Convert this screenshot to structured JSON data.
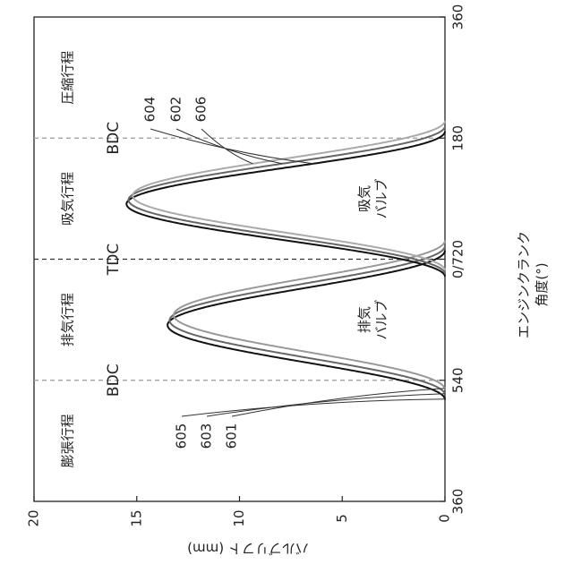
{
  "chart_data": {
    "type": "line",
    "title": "",
    "xlabel": "エンジンクランク\n角度(°)",
    "ylabel": "バルブリフト (mm)",
    "ylim": [
      0,
      20
    ],
    "x_ticks": [
      "360",
      "540",
      "0/720",
      "180",
      "360"
    ],
    "x_tick_values": [
      360,
      540,
      720,
      900,
      1080
    ],
    "y_ticks": [
      "0",
      "5",
      "10",
      "15",
      "20"
    ],
    "y_tick_values": [
      0,
      5,
      10,
      15,
      20
    ],
    "grid": false,
    "reference_lines": [
      {
        "x": 540,
        "label": "BDC"
      },
      {
        "x": 720,
        "label": "TDC"
      },
      {
        "x": 900,
        "label": "BDC"
      }
    ],
    "stroke_labels": [
      {
        "label": "膨張行程",
        "x_center": 450
      },
      {
        "label": "排気行程",
        "x_center": 630
      },
      {
        "label": "吸気行程",
        "x_center": 810
      },
      {
        "label": "圧縮行程",
        "x_center": 990
      }
    ],
    "valve_labels": [
      {
        "label": "排気\nバルブ",
        "x": 630,
        "y": 3.5
      },
      {
        "label": "吸気\nバルブ",
        "x": 810,
        "y": 3.5
      }
    ],
    "series": [
      {
        "name": "605",
        "valve": "exhaust",
        "color": "#111111",
        "start": 511,
        "end": 733,
        "peak": 13.5
      },
      {
        "name": "603",
        "valve": "exhaust",
        "color": "#666666",
        "start": 518,
        "end": 740,
        "peak": 13.4
      },
      {
        "name": "601",
        "valve": "exhaust",
        "color": "#999999",
        "start": 526,
        "end": 748,
        "peak": 13.2
      },
      {
        "name": "604",
        "valve": "intake",
        "color": "#111111",
        "start": 694,
        "end": 910,
        "peak": 15.5
      },
      {
        "name": "602",
        "valve": "intake",
        "color": "#666666",
        "start": 698,
        "end": 918,
        "peak": 15.4
      },
      {
        "name": "606",
        "valve": "intake",
        "color": "#aaaaaa",
        "start": 703,
        "end": 926,
        "peak": 15.2
      }
    ],
    "legend": "callouts"
  }
}
